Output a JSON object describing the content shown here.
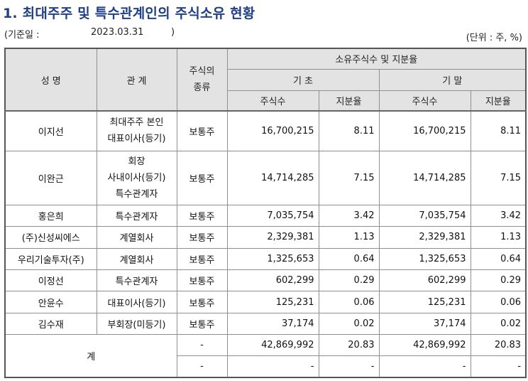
{
  "title": "1. 최대주주 및 특수관계인의 주식소유 현황",
  "base_date": {
    "label": "(기준일 :",
    "date": "2023.03.31",
    "close": ")"
  },
  "unit": "(단위 : 주, %)",
  "headers": {
    "name": "성 명",
    "relation": "관 계",
    "stock_type": [
      "주식의",
      "종류"
    ],
    "ownership": "소유주식수 및 지분율",
    "begin": "기 초",
    "end": "기 말",
    "shares": "주식수",
    "ratio": "지분율"
  },
  "rows": [
    {
      "name": "이지선",
      "relation": [
        "최대주주 본인",
        "대표이사(등기)"
      ],
      "type": "보통주",
      "begin_shares": "16,700,215",
      "begin_ratio": "8.11",
      "end_shares": "16,700,215",
      "end_ratio": "8.11"
    },
    {
      "name": "이완근",
      "relation": [
        "회장",
        "사내이사(등기)",
        "특수관계자"
      ],
      "type": "보통주",
      "begin_shares": "14,714,285",
      "begin_ratio": "7.15",
      "end_shares": "14,714,285",
      "end_ratio": "7.15"
    },
    {
      "name": "홍은희",
      "relation": [
        "특수관계자"
      ],
      "type": "보통주",
      "begin_shares": "7,035,754",
      "begin_ratio": "3.42",
      "end_shares": "7,035,754",
      "end_ratio": "3.42"
    },
    {
      "name": "(주)신성씨에스",
      "relation": [
        "계열회사"
      ],
      "type": "보통주",
      "begin_shares": "2,329,381",
      "begin_ratio": "1.13",
      "end_shares": "2,329,381",
      "end_ratio": "1.13"
    },
    {
      "name": "우리기술투자(주)",
      "relation": [
        "계열회사"
      ],
      "type": "보통주",
      "begin_shares": "1,325,653",
      "begin_ratio": "0.64",
      "end_shares": "1,325,653",
      "end_ratio": "0.64"
    },
    {
      "name": "이정선",
      "relation": [
        "특수관계자"
      ],
      "type": "보통주",
      "begin_shares": "602,299",
      "begin_ratio": "0.29",
      "end_shares": "602,299",
      "end_ratio": "0.29"
    },
    {
      "name": "안윤수",
      "relation": [
        "대표이사(등기)"
      ],
      "type": "보통주",
      "begin_shares": "125,231",
      "begin_ratio": "0.06",
      "end_shares": "125,231",
      "end_ratio": "0.06"
    },
    {
      "name": "김수재",
      "relation": [
        "부회장(미등기)"
      ],
      "type": "보통주",
      "begin_shares": "37,174",
      "begin_ratio": "0.02",
      "end_shares": "37,174",
      "end_ratio": "0.02"
    }
  ],
  "total": {
    "label": "계",
    "rows": [
      {
        "type": "-",
        "begin_shares": "42,869,992",
        "begin_ratio": "20.83",
        "end_shares": "42,869,992",
        "end_ratio": "20.83"
      },
      {
        "type": "-",
        "begin_shares": "-",
        "begin_ratio": "-",
        "end_shares": "-",
        "end_ratio": "-"
      }
    ]
  }
}
